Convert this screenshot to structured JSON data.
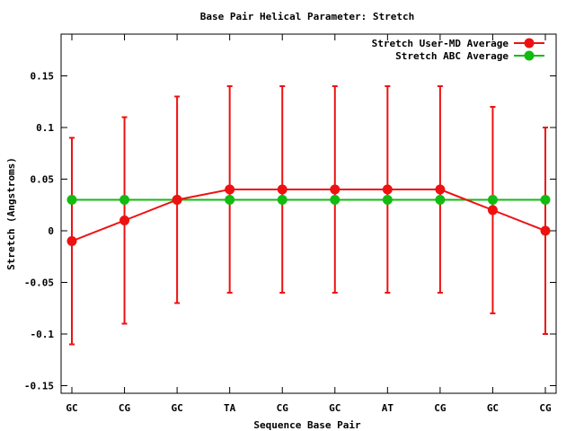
{
  "chart_data": {
    "type": "line",
    "title": "Base Pair Helical Parameter: Stretch",
    "xlabel": "Sequence Base Pair",
    "ylabel": "Stretch (Angstroms)",
    "categories": [
      "GC",
      "CG",
      "GC",
      "TA",
      "CG",
      "GC",
      "AT",
      "CG",
      "GC",
      "CG"
    ],
    "ylim": [
      -0.16,
      0.19
    ],
    "yticks": [
      {
        "value": -0.15,
        "label": "-0.15"
      },
      {
        "value": -0.1,
        "label": "-0.1"
      },
      {
        "value": -0.05,
        "label": "-0.05"
      },
      {
        "value": 0,
        "label": "0"
      },
      {
        "value": 0.05,
        "label": "0.05"
      },
      {
        "value": 0.1,
        "label": "0.1"
      },
      {
        "value": 0.15,
        "label": "0.15"
      }
    ],
    "grid": false,
    "legend_position": "top-right",
    "series": [
      {
        "name": "Stretch User-MD Average",
        "color": "#ee1111",
        "values": [
          -0.01,
          0.01,
          0.03,
          0.04,
          0.04,
          0.04,
          0.04,
          0.04,
          0.02,
          0.0
        ],
        "error": [
          0.1,
          0.1,
          0.1,
          0.1,
          0.1,
          0.1,
          0.1,
          0.1,
          0.1,
          0.1
        ]
      },
      {
        "name": "Stretch ABC Average",
        "color": "#11bb11",
        "values": [
          0.03,
          0.03,
          0.03,
          0.03,
          0.03,
          0.03,
          0.03,
          0.03,
          0.03,
          0.03
        ]
      }
    ]
  }
}
